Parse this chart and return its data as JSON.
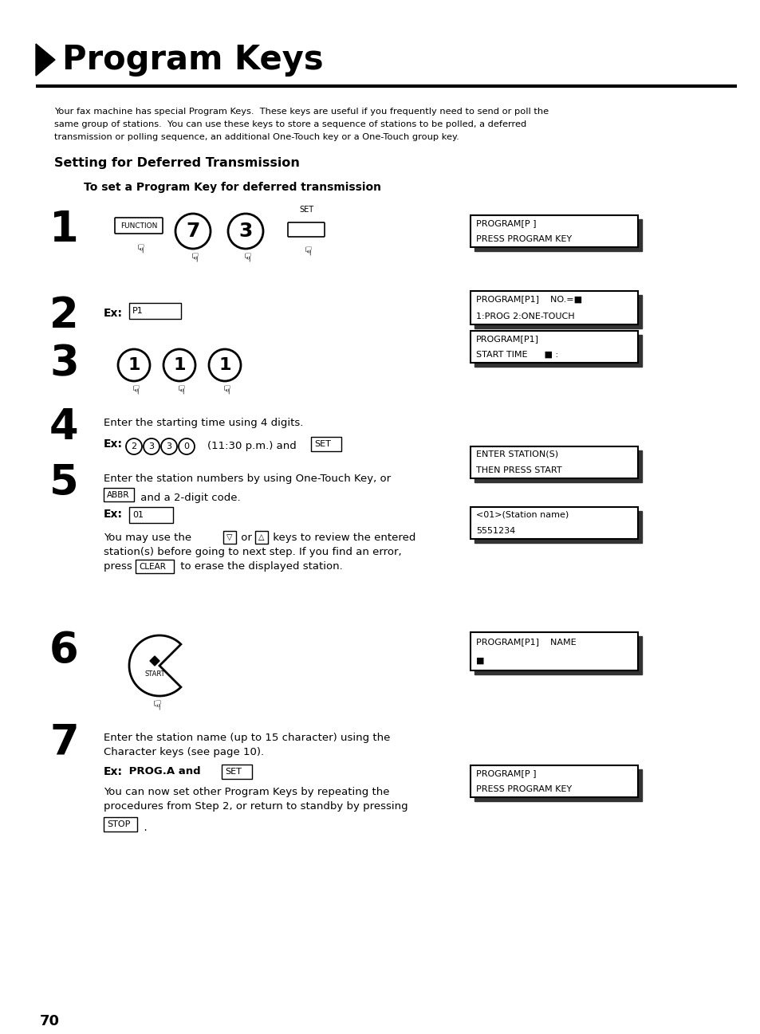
{
  "bg_color": "#ffffff",
  "title": "Program Keys",
  "page_number": "70",
  "intro_text_lines": [
    "Your fax machine has special Program Keys.  These keys are useful if you frequently need to send or poll the",
    "same group of stations.  You can use these keys to store a sequence of stations to be polled, a deferred",
    "transmission or polling sequence, an additional One-Touch key or a One-Touch group key."
  ],
  "section_title": "Setting for Deferred Transmission",
  "subsection_title": "To set a Program Key for deferred transmission",
  "display_boxes": [
    {
      "lines": [
        "PROGRAM[P ]",
        "PRESS PROGRAM KEY"
      ],
      "step": 1
    },
    {
      "lines": [
        "PROGRAM[P1]    NO.=■",
        "1:PROG 2:ONE-TOUCH"
      ],
      "step": 2
    },
    {
      "lines": [
        "PROGRAM[P1]",
        "START TIME      ■ :"
      ],
      "step": 3
    },
    {
      "lines": [
        "ENTER STATION(S)",
        "THEN PRESS START"
      ],
      "step": 4
    },
    {
      "lines": [
        "<01>(Station name)",
        "5551234"
      ],
      "step": 5
    },
    {
      "lines": [
        "PROGRAM[P1]    NAME",
        "■"
      ],
      "step": 6
    },
    {
      "lines": [
        "PROGRAM[P ]",
        "PRESS PROGRAM KEY"
      ],
      "step": 7
    }
  ]
}
